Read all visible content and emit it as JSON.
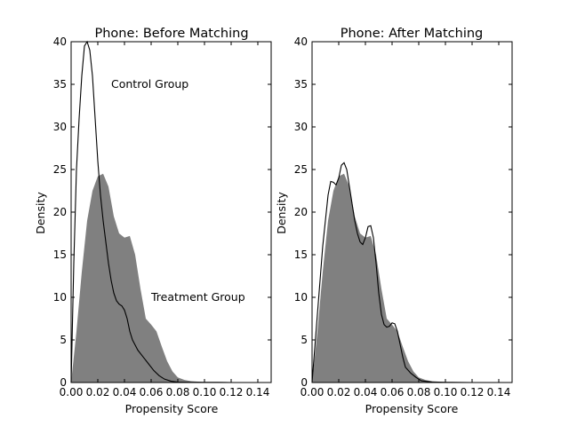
{
  "chart_data": [
    {
      "type": "area",
      "title": "Phone: Before Matching",
      "xlabel": "Propensity Score",
      "ylabel": "Density",
      "xlim": [
        0.0,
        0.15
      ],
      "ylim": [
        0,
        40
      ],
      "xticks": [
        "0.00",
        "0.02",
        "0.04",
        "0.06",
        "0.08",
        "0.10",
        "0.12",
        "0.14"
      ],
      "yticks": [
        "0",
        "5",
        "10",
        "15",
        "20",
        "25",
        "30",
        "35",
        "40"
      ],
      "annotations": [
        {
          "text": "Control Group",
          "x": 0.03,
          "y": 35.0
        },
        {
          "text": "Treatment Group",
          "x": 0.06,
          "y": 10.0
        }
      ],
      "series": [
        {
          "kind": "filled",
          "color": "#808080",
          "points": [
            [
              0.0,
              0
            ],
            [
              0.004,
              6
            ],
            [
              0.008,
              13
            ],
            [
              0.012,
              19
            ],
            [
              0.016,
              22.5
            ],
            [
              0.02,
              24.2
            ],
            [
              0.024,
              24.5
            ],
            [
              0.028,
              23
            ],
            [
              0.032,
              19.5
            ],
            [
              0.036,
              17.5
            ],
            [
              0.04,
              17.0
            ],
            [
              0.044,
              17.2
            ],
            [
              0.048,
              15
            ],
            [
              0.052,
              11
            ],
            [
              0.056,
              7.5
            ],
            [
              0.06,
              6.8
            ],
            [
              0.064,
              6
            ],
            [
              0.068,
              4.2
            ],
            [
              0.072,
              2.5
            ],
            [
              0.076,
              1.3
            ],
            [
              0.08,
              0.6
            ],
            [
              0.085,
              0.3
            ],
            [
              0.09,
              0.15
            ],
            [
              0.1,
              0.05
            ],
            [
              0.11,
              0.02
            ],
            [
              0.12,
              0
            ],
            [
              0.15,
              0
            ]
          ]
        },
        {
          "kind": "line",
          "color": "#000000",
          "points": [
            [
              0.0,
              0
            ],
            [
              0.002,
              14
            ],
            [
              0.004,
              25
            ],
            [
              0.006,
              31
            ],
            [
              0.008,
              36
            ],
            [
              0.01,
              39.5
            ],
            [
              0.012,
              40
            ],
            [
              0.014,
              39
            ],
            [
              0.016,
              36
            ],
            [
              0.018,
              31
            ],
            [
              0.02,
              26
            ],
            [
              0.022,
              22
            ],
            [
              0.024,
              19
            ],
            [
              0.026,
              16.5
            ],
            [
              0.028,
              14
            ],
            [
              0.03,
              12
            ],
            [
              0.032,
              10.5
            ],
            [
              0.034,
              9.6
            ],
            [
              0.036,
              9.2
            ],
            [
              0.038,
              9.0
            ],
            [
              0.04,
              8.5
            ],
            [
              0.042,
              7.5
            ],
            [
              0.044,
              6
            ],
            [
              0.046,
              5
            ],
            [
              0.048,
              4.4
            ],
            [
              0.05,
              3.8
            ],
            [
              0.054,
              3
            ],
            [
              0.058,
              2.2
            ],
            [
              0.062,
              1.4
            ],
            [
              0.066,
              0.8
            ],
            [
              0.07,
              0.4
            ],
            [
              0.075,
              0.15
            ],
            [
              0.08,
              0.05
            ],
            [
              0.09,
              0.02
            ],
            [
              0.1,
              0.02
            ],
            [
              0.11,
              0.02
            ],
            [
              0.12,
              0
            ],
            [
              0.15,
              0
            ]
          ]
        }
      ]
    },
    {
      "type": "area",
      "title": "Phone: After Matching",
      "xlabel": "Propensity Score",
      "ylabel": "Density",
      "xlim": [
        0.0,
        0.15
      ],
      "ylim": [
        0,
        40
      ],
      "xticks": [
        "0.00",
        "0.02",
        "0.04",
        "0.06",
        "0.08",
        "0.10",
        "0.12",
        "0.14"
      ],
      "yticks": [
        "0",
        "5",
        "10",
        "15",
        "20",
        "25",
        "30",
        "35",
        "40"
      ],
      "series": [
        {
          "kind": "filled",
          "color": "#808080",
          "points": [
            [
              0.0,
              0
            ],
            [
              0.004,
              6
            ],
            [
              0.008,
              13
            ],
            [
              0.012,
              19
            ],
            [
              0.016,
              22.5
            ],
            [
              0.02,
              24.2
            ],
            [
              0.024,
              24.5
            ],
            [
              0.028,
              23
            ],
            [
              0.032,
              19.5
            ],
            [
              0.036,
              17.5
            ],
            [
              0.04,
              17.0
            ],
            [
              0.044,
              17.2
            ],
            [
              0.048,
              15
            ],
            [
              0.052,
              11
            ],
            [
              0.056,
              7.5
            ],
            [
              0.06,
              6.8
            ],
            [
              0.064,
              6
            ],
            [
              0.068,
              4.2
            ],
            [
              0.072,
              2.5
            ],
            [
              0.076,
              1.3
            ],
            [
              0.08,
              0.6
            ],
            [
              0.085,
              0.3
            ],
            [
              0.09,
              0.15
            ],
            [
              0.1,
              0.05
            ],
            [
              0.11,
              0.02
            ],
            [
              0.12,
              0
            ],
            [
              0.15,
              0
            ]
          ]
        },
        {
          "kind": "line",
          "color": "#000000",
          "points": [
            [
              0.0,
              0
            ],
            [
              0.004,
              8
            ],
            [
              0.008,
              16
            ],
            [
              0.012,
              22
            ],
            [
              0.014,
              23.6
            ],
            [
              0.016,
              23.5
            ],
            [
              0.018,
              23.2
            ],
            [
              0.02,
              24
            ],
            [
              0.022,
              25.5
            ],
            [
              0.024,
              25.8
            ],
            [
              0.026,
              25
            ],
            [
              0.028,
              23
            ],
            [
              0.03,
              21
            ],
            [
              0.032,
              19
            ],
            [
              0.034,
              17.5
            ],
            [
              0.036,
              16.5
            ],
            [
              0.038,
              16.2
            ],
            [
              0.04,
              17
            ],
            [
              0.042,
              18.3
            ],
            [
              0.044,
              18.4
            ],
            [
              0.046,
              17
            ],
            [
              0.048,
              14
            ],
            [
              0.05,
              10.5
            ],
            [
              0.052,
              8
            ],
            [
              0.054,
              6.8
            ],
            [
              0.056,
              6.5
            ],
            [
              0.058,
              6.6
            ],
            [
              0.06,
              7
            ],
            [
              0.062,
              6.9
            ],
            [
              0.064,
              6
            ],
            [
              0.066,
              4.5
            ],
            [
              0.068,
              3
            ],
            [
              0.07,
              1.8
            ],
            [
              0.074,
              1.1
            ],
            [
              0.078,
              0.6
            ],
            [
              0.082,
              0.2
            ],
            [
              0.09,
              0.05
            ],
            [
              0.1,
              0.02
            ],
            [
              0.12,
              0
            ],
            [
              0.15,
              0
            ]
          ]
        }
      ]
    }
  ]
}
